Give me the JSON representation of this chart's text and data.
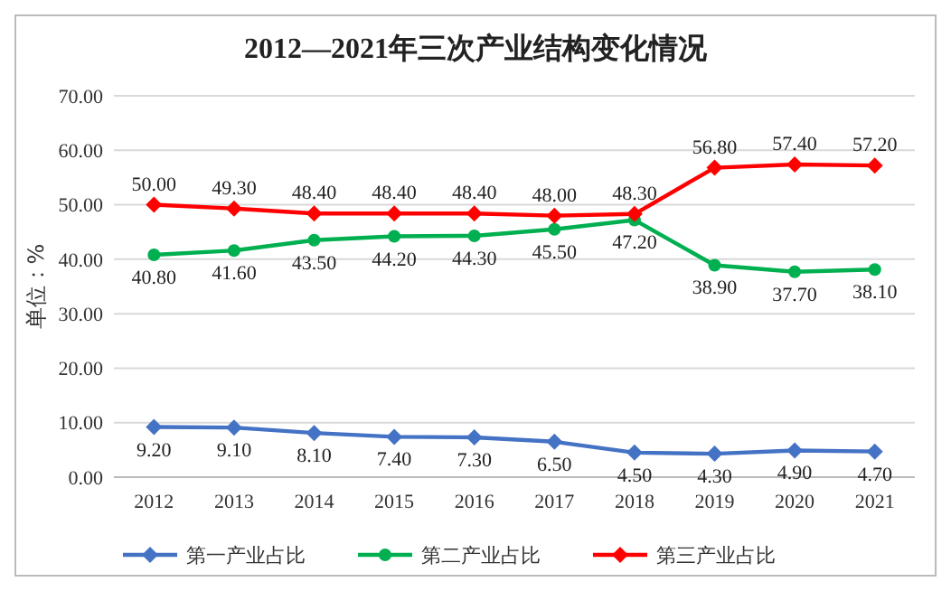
{
  "chart_data": {
    "type": "line",
    "title": "2012—2021年三次产业结构变化情况",
    "ylabel": "单位：%",
    "categories": [
      "2012",
      "2013",
      "2014",
      "2015",
      "2016",
      "2017",
      "2018",
      "2019",
      "2020",
      "2021"
    ],
    "series": [
      {
        "name": "第一产业占比",
        "color": "#4472c4",
        "marker": "diamond",
        "values": [
          9.2,
          9.1,
          8.1,
          7.4,
          7.3,
          6.5,
          4.5,
          4.3,
          4.9,
          4.7
        ],
        "value_labels": [
          "9.20",
          "9.10",
          "8.10",
          "7.40",
          "7.30",
          "6.50",
          "4.50",
          "4.30",
          "4.90",
          "4.70"
        ]
      },
      {
        "name": "第二产业占比",
        "color": "#00b050",
        "marker": "circle",
        "values": [
          40.8,
          41.6,
          43.5,
          44.2,
          44.3,
          45.5,
          47.2,
          38.9,
          37.7,
          38.1
        ],
        "value_labels": [
          "40.80",
          "41.60",
          "43.50",
          "44.20",
          "44.30",
          "45.50",
          "47.20",
          "38.90",
          "37.70",
          "38.10"
        ]
      },
      {
        "name": "第三产业占比",
        "color": "#ff0000",
        "marker": "diamond",
        "values": [
          50.0,
          49.3,
          48.4,
          48.4,
          48.4,
          48.0,
          48.3,
          56.8,
          57.4,
          57.2
        ],
        "value_labels": [
          "50.00",
          "49.30",
          "48.40",
          "48.40",
          "48.40",
          "48.00",
          "48.30",
          "56.80",
          "57.40",
          "57.20"
        ]
      }
    ],
    "ylim": [
      0,
      70
    ],
    "yticks": [
      {
        "value": 0,
        "label": "0.00"
      },
      {
        "value": 10,
        "label": "10.00"
      },
      {
        "value": 20,
        "label": "20.00"
      },
      {
        "value": 30,
        "label": "30.00"
      },
      {
        "value": 40,
        "label": "40.00"
      },
      {
        "value": 50,
        "label": "50.00"
      },
      {
        "value": 60,
        "label": "60.00"
      },
      {
        "value": 70,
        "label": "70.00"
      }
    ],
    "grid": "y",
    "legend": "bottom",
    "line_style": "solid"
  }
}
